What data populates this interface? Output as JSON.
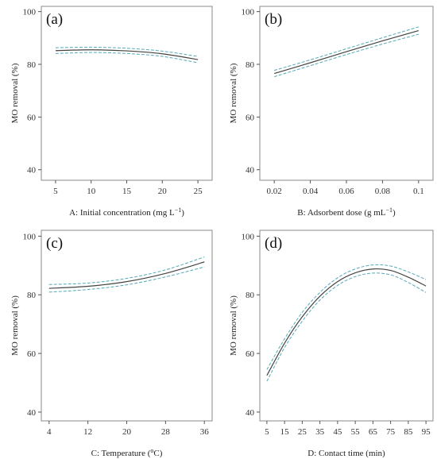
{
  "chart_data": [
    {
      "type": "line",
      "panel_label": "(a)",
      "xlabel": "A: Initial concentration (mg L",
      "xlabel_sup": "−1",
      "xlabel_end": ")",
      "ylabel": "MO removal (%)",
      "x": [
        5,
        10,
        15,
        20,
        25
      ],
      "xticks": [
        5,
        10,
        15,
        20,
        25
      ],
      "xlim": [
        3,
        27
      ],
      "yticks": [
        40,
        60,
        80,
        100
      ],
      "ylim": [
        36,
        102
      ],
      "series": [
        {
          "role": "fit",
          "values": [
            85.2,
            85.5,
            85.1,
            84.0,
            81.8
          ]
        },
        {
          "role": "upper",
          "values": [
            86.3,
            86.5,
            86.1,
            85.0,
            83.0
          ]
        },
        {
          "role": "lower",
          "values": [
            84.1,
            84.5,
            84.1,
            83.0,
            80.6
          ]
        }
      ]
    },
    {
      "type": "line",
      "panel_label": "(b)",
      "xlabel": "B: Adsorbent dose (g mL",
      "xlabel_sup": "−1",
      "xlabel_end": ")",
      "ylabel": "MO removal (%)",
      "x": [
        0.02,
        0.04,
        0.06,
        0.08,
        0.1
      ],
      "xticks": [
        0.02,
        0.04,
        0.06,
        0.08,
        0.1
      ],
      "xlim": [
        0.012,
        0.108
      ],
      "yticks": [
        40,
        60,
        80,
        100
      ],
      "ylim": [
        36,
        102
      ],
      "series": [
        {
          "role": "fit",
          "values": [
            76.5,
            80.6,
            84.8,
            88.9,
            92.8
          ]
        },
        {
          "role": "upper",
          "values": [
            77.7,
            81.7,
            85.9,
            90.1,
            94.2
          ]
        },
        {
          "role": "lower",
          "values": [
            75.3,
            79.5,
            83.7,
            87.7,
            91.4
          ]
        }
      ]
    },
    {
      "type": "line",
      "panel_label": "(c)",
      "xlabel": "C: Temperature (",
      "xlabel_sup": "o",
      "xlabel_end": "C)",
      "ylabel": "MO removal (%)",
      "x": [
        4,
        12,
        20,
        28,
        36
      ],
      "xticks": [
        4,
        12,
        20,
        28,
        36
      ],
      "xlim": [
        2.4,
        37.6
      ],
      "yticks": [
        40,
        60,
        80,
        100
      ],
      "ylim": [
        37,
        102
      ],
      "series": [
        {
          "role": "fit",
          "values": [
            82.2,
            82.9,
            84.5,
            87.3,
            91.2
          ]
        },
        {
          "role": "upper",
          "values": [
            83.5,
            84.0,
            85.6,
            88.5,
            92.9
          ]
        },
        {
          "role": "lower",
          "values": [
            80.9,
            81.8,
            83.4,
            86.1,
            89.5
          ]
        }
      ]
    },
    {
      "type": "line",
      "panel_label": "(d)",
      "xlabel": "D: Contact time (min)",
      "xlabel_sup": "",
      "xlabel_end": "",
      "ylabel": "MO removal (%)",
      "x": [
        5,
        15,
        25,
        35,
        45,
        55,
        65,
        75,
        85,
        95
      ],
      "xticks": [
        5,
        15,
        25,
        35,
        45,
        55,
        65,
        75,
        85,
        95
      ],
      "xlim": [
        1,
        99
      ],
      "yticks": [
        40,
        60,
        80,
        100
      ],
      "ylim": [
        37,
        102
      ],
      "series": [
        {
          "role": "fit",
          "values": [
            52.5,
            63.5,
            72.5,
            79.5,
            84.5,
            87.5,
            88.8,
            88.3,
            86.0,
            83.0
          ]
        },
        {
          "role": "upper",
          "values": [
            54.5,
            65.0,
            74.0,
            80.8,
            85.8,
            88.8,
            90.2,
            89.8,
            87.8,
            85.2
          ]
        },
        {
          "role": "lower",
          "values": [
            50.5,
            62.0,
            71.0,
            78.2,
            83.2,
            86.2,
            87.4,
            86.8,
            84.2,
            80.8
          ]
        }
      ]
    }
  ]
}
